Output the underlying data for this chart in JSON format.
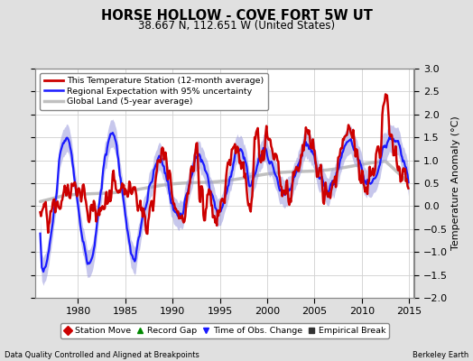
{
  "title": "HORSE HOLLOW - COVE FORT 5W UT",
  "subtitle": "38.667 N, 112.651 W (United States)",
  "ylabel": "Temperature Anomaly (°C)",
  "xlabel_left": "Data Quality Controlled and Aligned at Breakpoints",
  "xlabel_right": "Berkeley Earth",
  "ylim": [
    -2.0,
    3.0
  ],
  "xlim": [
    1975.5,
    2015.5
  ],
  "xticks": [
    1980,
    1985,
    1990,
    1995,
    2000,
    2005,
    2010,
    2015
  ],
  "yticks": [
    -2,
    -1.5,
    -1,
    -0.5,
    0,
    0.5,
    1,
    1.5,
    2,
    2.5,
    3
  ],
  "bg_color": "#e0e0e0",
  "plot_bg_color": "#ffffff",
  "station_color": "#cc0000",
  "regional_color": "#1a1aff",
  "regional_fill_color": "#9999dd",
  "global_color": "#c0c0c0",
  "seed": 42
}
